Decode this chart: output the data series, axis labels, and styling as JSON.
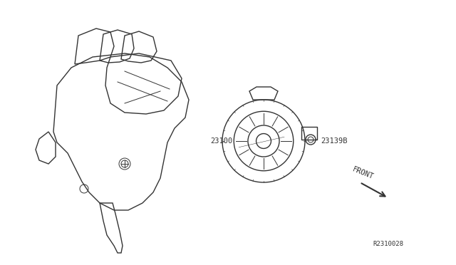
{
  "title": "",
  "bg_color": "#ffffff",
  "line_color": "#333333",
  "text_color": "#333333",
  "label_23100": "23100",
  "label_23139B": "23139B",
  "label_FRONT": "FRONT",
  "label_ref": "R2310028",
  "figsize": [
    6.4,
    3.72
  ],
  "dpi": 100
}
